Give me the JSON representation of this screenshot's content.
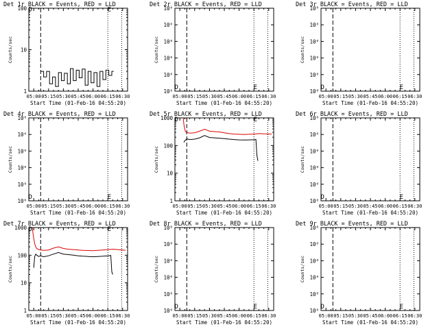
{
  "chart_data": [
    {
      "type": "line",
      "title": "Det 1r BLACK = Events, RED = LLD",
      "xlabel": "Start Time (01-Feb-16 04:55:20)",
      "ylabel": "Counts/sec",
      "yscale": "log",
      "ylim": [
        1,
        100
      ],
      "yticks": [
        {
          "v": 1,
          "label": "1"
        },
        {
          "v": 10,
          "label": "10"
        },
        {
          "v": 100,
          "label": "100"
        }
      ],
      "xlim_min": [
        295,
        395
      ],
      "x_tick_labels": [
        "05:00",
        "05:15",
        "05:30",
        "05:45",
        "06:00",
        "06:15",
        "06:30"
      ],
      "x_tick_min": [
        300,
        315,
        330,
        345,
        360,
        375,
        390
      ],
      "marker_lines_min": [
        {
          "x": 307,
          "style": "dashed"
        },
        {
          "x": 375,
          "style": "dotted"
        },
        {
          "x": 389,
          "style": "dotted"
        }
      ],
      "markers": [
        {
          "label": "D",
          "x_min": 296.5,
          "y": 95
        },
        {
          "label": "E",
          "x_min": 376.5,
          "y": 95
        }
      ],
      "series": [
        {
          "name": "Events",
          "color": "#000000",
          "step": true,
          "x_min": [
            307,
            310,
            313,
            316,
            319,
            322,
            325,
            328,
            331,
            334,
            337,
            340,
            343,
            346,
            349,
            352,
            355,
            358,
            361,
            364,
            367,
            370,
            373,
            376,
            379
          ],
          "values": [
            3,
            2.2,
            3,
            1.5,
            2.2,
            1.3,
            2.8,
            1.8,
            2.7,
            1.5,
            3.5,
            1.8,
            3.2,
            2.1,
            3.4,
            1.4,
            3.0,
            1.6,
            2.8,
            1.3,
            3.0,
            1.9,
            3.2,
            2.4,
            3.0
          ]
        }
      ]
    },
    {
      "type": "line",
      "title": "Det 2r BLACK = Events, RED = LLD",
      "xlabel": "Start Time (01-Feb-16 04:55:20)",
      "ylabel": "Counts/sec",
      "yscale": "log",
      "ylim": [
        0.9999995,
        1.0000005
      ],
      "yticks": [
        {
          "v": 1.0000005,
          "label": "10⁰"
        },
        {
          "v": 1.0000003,
          "label": "10⁰"
        },
        {
          "v": 1.0000001,
          "label": "10⁰"
        },
        {
          "v": 0.9999999,
          "label": "10⁰"
        },
        {
          "v": 0.9999997,
          "label": "10⁰"
        },
        {
          "v": 0.9999995,
          "label": "10⁰"
        }
      ],
      "xlim_min": [
        295,
        395
      ],
      "x_tick_labels": [
        "05:00",
        "05:15",
        "05:30",
        "05:45",
        "06:00",
        "06:15",
        "06:30"
      ],
      "x_tick_min": [
        300,
        315,
        330,
        345,
        360,
        375,
        390
      ],
      "marker_lines_min": [
        {
          "x": 307,
          "style": "dashed"
        },
        {
          "x": 375,
          "style": "dotted"
        },
        {
          "x": 389,
          "style": "dotted"
        }
      ],
      "markers": [
        {
          "label": "D",
          "x_min": 296.5,
          "y": 0.99999955
        },
        {
          "label": "E",
          "x_min": 376.5,
          "y": 0.99999955
        }
      ],
      "series": []
    },
    {
      "type": "line",
      "title": "Det 3r BLACK = Events, RED = LLD",
      "xlabel": "Start Time (01-Feb-16 04:55:20)",
      "ylabel": "Counts/sec",
      "yscale": "log",
      "ylim": [
        0.9999995,
        1.0000005
      ],
      "yticks": [
        {
          "v": 1.0000005,
          "label": "10⁰"
        },
        {
          "v": 1.0000003,
          "label": "10⁰"
        },
        {
          "v": 1.0000001,
          "label": "10⁰"
        },
        {
          "v": 0.9999999,
          "label": "10⁰"
        },
        {
          "v": 0.9999997,
          "label": "10⁰"
        },
        {
          "v": 0.9999995,
          "label": "10⁰"
        }
      ],
      "xlim_min": [
        295,
        395
      ],
      "x_tick_labels": [
        "05:00",
        "05:15",
        "05:30",
        "05:45",
        "06:00",
        "06:15",
        "06:30"
      ],
      "x_tick_min": [
        300,
        315,
        330,
        345,
        360,
        375,
        390
      ],
      "marker_lines_min": [
        {
          "x": 307,
          "style": "dashed"
        },
        {
          "x": 375,
          "style": "dotted"
        },
        {
          "x": 389,
          "style": "dotted"
        }
      ],
      "markers": [
        {
          "label": "D",
          "x_min": 296.5,
          "y": 0.99999955
        },
        {
          "label": "E",
          "x_min": 376.5,
          "y": 0.99999955
        }
      ],
      "series": []
    },
    {
      "type": "line",
      "title": "Det 4r BLACK = Events, RED = LLD",
      "xlabel": "Start Time (01-Feb-16 04:55:20)",
      "ylabel": "Counts/sec",
      "yscale": "log",
      "ylim": [
        0.9999995,
        1.0000005
      ],
      "yticks": [
        {
          "v": 1.0000005,
          "label": "10⁰"
        },
        {
          "v": 1.0000003,
          "label": "10⁰"
        },
        {
          "v": 1.0000001,
          "label": "10⁰"
        },
        {
          "v": 0.9999999,
          "label": "10⁰"
        },
        {
          "v": 0.9999997,
          "label": "10⁰"
        },
        {
          "v": 0.9999995,
          "label": "10⁰"
        }
      ],
      "xlim_min": [
        295,
        395
      ],
      "x_tick_labels": [
        "05:00",
        "05:15",
        "05:30",
        "05:45",
        "06:00",
        "06:15",
        "06:30"
      ],
      "x_tick_min": [
        300,
        315,
        330,
        345,
        360,
        375,
        390
      ],
      "marker_lines_min": [
        {
          "x": 307,
          "style": "dashed"
        },
        {
          "x": 375,
          "style": "dotted"
        },
        {
          "x": 389,
          "style": "dotted"
        }
      ],
      "markers": [
        {
          "label": "D",
          "x_min": 296.5,
          "y": 0.99999955
        },
        {
          "label": "E",
          "x_min": 376.5,
          "y": 0.99999955
        }
      ],
      "series": []
    },
    {
      "type": "line",
      "title": "Det 5r BLACK = Events, RED = LLD",
      "xlabel": "Start Time (01-Feb-16 04:55:20)",
      "ylabel": "Counts/sec",
      "yscale": "log",
      "ylim": [
        1,
        1000
      ],
      "yticks": [
        {
          "v": 1,
          "label": "1"
        },
        {
          "v": 10,
          "label": "10"
        },
        {
          "v": 100,
          "label": "100"
        },
        {
          "v": 1000,
          "label": "1000"
        }
      ],
      "xlim_min": [
        295,
        395
      ],
      "x_tick_labels": [
        "05:00",
        "05:15",
        "05:30",
        "05:45",
        "06:00",
        "06:15",
        "06:30"
      ],
      "x_tick_min": [
        300,
        315,
        330,
        345,
        360,
        375,
        390
      ],
      "marker_lines_min": [
        {
          "x": 307,
          "style": "dashed"
        },
        {
          "x": 375,
          "style": "dotted"
        },
        {
          "x": 389,
          "style": "dotted"
        }
      ],
      "markers": [
        {
          "label": "D",
          "x_min": 296.5,
          "y": 880
        },
        {
          "label": "E",
          "x_min": 376.5,
          "y": 880
        }
      ],
      "series": [
        {
          "name": "LLD",
          "color": "#dd0000",
          "x_min": [
            303.5,
            304,
            305,
            306,
            307,
            310,
            315,
            320,
            325,
            330,
            335,
            340,
            345,
            350,
            355,
            360,
            365,
            370,
            375,
            380,
            385,
            390,
            393
          ],
          "values": [
            1000,
            600,
            380,
            310,
            300,
            280,
            290,
            330,
            390,
            330,
            320,
            310,
            290,
            270,
            260,
            255,
            250,
            255,
            260,
            270,
            265,
            262,
            260
          ]
        },
        {
          "name": "Events",
          "color": "#000000",
          "x_min": [
            304,
            305,
            306,
            307,
            310,
            315,
            320,
            325,
            330,
            335,
            340,
            345,
            350,
            355,
            360,
            365,
            370,
            375,
            377,
            378,
            379
          ],
          "values": [
            130,
            150,
            160,
            175,
            165,
            170,
            190,
            230,
            195,
            190,
            185,
            178,
            170,
            165,
            160,
            158,
            160,
            162,
            165,
            45,
            28
          ]
        }
      ]
    },
    {
      "type": "line",
      "title": "Det 6r BLACK = Events, RED = LLD",
      "xlabel": "Start Time (01-Feb-16 04:55:20)",
      "ylabel": "Counts/sec",
      "yscale": "log",
      "ylim": [
        0.9999995,
        1.0000005
      ],
      "yticks": [
        {
          "v": 1.0000005,
          "label": "10⁰"
        },
        {
          "v": 1.0000003,
          "label": "10⁰"
        },
        {
          "v": 1.0000001,
          "label": "10⁰"
        },
        {
          "v": 0.9999999,
          "label": "10⁰"
        },
        {
          "v": 0.9999997,
          "label": "10⁰"
        },
        {
          "v": 0.9999995,
          "label": "10⁰"
        }
      ],
      "xlim_min": [
        295,
        395
      ],
      "x_tick_labels": [
        "05:00",
        "05:15",
        "05:30",
        "05:45",
        "06:00",
        "06:15",
        "06:30"
      ],
      "x_tick_min": [
        300,
        315,
        330,
        345,
        360,
        375,
        390
      ],
      "marker_lines_min": [
        {
          "x": 307,
          "style": "dashed"
        },
        {
          "x": 375,
          "style": "dotted"
        },
        {
          "x": 389,
          "style": "dotted"
        }
      ],
      "markers": [
        {
          "label": "D",
          "x_min": 296.5,
          "y": 0.99999955
        },
        {
          "label": "E",
          "x_min": 376.5,
          "y": 0.99999955
        }
      ],
      "series": []
    },
    {
      "type": "line",
      "title": "Det 7r BLACK = Events, RED = LLD",
      "xlabel": "Start Time (01-Feb-16 04:55:20)",
      "ylabel": "Counts/sec",
      "yscale": "log",
      "ylim": [
        1,
        1000
      ],
      "yticks": [
        {
          "v": 1,
          "label": "1"
        },
        {
          "v": 10,
          "label": "10"
        },
        {
          "v": 100,
          "label": "100"
        },
        {
          "v": 1000,
          "label": "1000"
        }
      ],
      "xlim_min": [
        295,
        395
      ],
      "x_tick_labels": [
        "05:00",
        "05:15",
        "05:30",
        "05:45",
        "06:00",
        "06:15",
        "06:30"
      ],
      "x_tick_min": [
        300,
        315,
        330,
        345,
        360,
        375,
        390
      ],
      "marker_lines_min": [
        {
          "x": 307,
          "style": "dashed"
        },
        {
          "x": 375,
          "style": "dotted"
        },
        {
          "x": 389,
          "style": "dotted"
        }
      ],
      "markers": [
        {
          "label": "D",
          "x_min": 296.5,
          "y": 880
        },
        {
          "label": "E",
          "x_min": 376.5,
          "y": 880
        }
      ],
      "series": [
        {
          "name": "LLD",
          "color": "#dd0000",
          "x_min": [
            298.5,
            299,
            300,
            301,
            302,
            303,
            305,
            307,
            310,
            315,
            320,
            325,
            330,
            335,
            340,
            345,
            350,
            355,
            360,
            365,
            370,
            375,
            380,
            385,
            390,
            393
          ],
          "values": [
            1000,
            700,
            400,
            260,
            200,
            175,
            160,
            155,
            150,
            155,
            180,
            200,
            175,
            165,
            160,
            155,
            150,
            148,
            145,
            150,
            155,
            160,
            165,
            160,
            155,
            150
          ]
        },
        {
          "name": "Events",
          "color": "#000000",
          "x_min": [
            300,
            301,
            302,
            303,
            304,
            305,
            307,
            310,
            315,
            320,
            325,
            330,
            335,
            340,
            345,
            350,
            355,
            360,
            365,
            370,
            375,
            378,
            379,
            380
          ],
          "values": [
            35,
            90,
            110,
            100,
            95,
            90,
            95,
            88,
            95,
            110,
            125,
            110,
            105,
            100,
            95,
            92,
            90,
            88,
            90,
            92,
            95,
            98,
            25,
            20
          ]
        }
      ]
    },
    {
      "type": "line",
      "title": "Det 8r BLACK = Events, RED = LLD",
      "xlabel": "Start Time (01-Feb-16 04:55:20)",
      "ylabel": "Counts/sec",
      "yscale": "log",
      "ylim": [
        0.9999995,
        1.0000005
      ],
      "yticks": [
        {
          "v": 1.0000005,
          "label": "10⁰"
        },
        {
          "v": 1.0000003,
          "label": "10⁰"
        },
        {
          "v": 1.0000001,
          "label": "10⁰"
        },
        {
          "v": 0.9999999,
          "label": "10⁰"
        },
        {
          "v": 0.9999997,
          "label": "10⁰"
        },
        {
          "v": 0.9999995,
          "label": "10⁰"
        }
      ],
      "xlim_min": [
        295,
        395
      ],
      "x_tick_labels": [
        "05:00",
        "05:15",
        "05:30",
        "05:45",
        "06:00",
        "06:15",
        "06:30"
      ],
      "x_tick_min": [
        300,
        315,
        330,
        345,
        360,
        375,
        390
      ],
      "marker_lines_min": [
        {
          "x": 307,
          "style": "dashed"
        },
        {
          "x": 375,
          "style": "dotted"
        },
        {
          "x": 389,
          "style": "dotted"
        }
      ],
      "markers": [
        {
          "label": "D",
          "x_min": 296.5,
          "y": 0.99999955
        },
        {
          "label": "E",
          "x_min": 376.5,
          "y": 0.99999955
        }
      ],
      "series": []
    },
    {
      "type": "line",
      "title": "Det 9r BLACK = Events, RED = LLD",
      "xlabel": "Start Time (01-Feb-16 04:55:20)",
      "ylabel": "Counts/sec",
      "yscale": "log",
      "ylim": [
        0.9999995,
        1.0000005
      ],
      "yticks": [
        {
          "v": 1.0000005,
          "label": "10⁰"
        },
        {
          "v": 1.0000003,
          "label": "10⁰"
        },
        {
          "v": 1.0000001,
          "label": "10⁰"
        },
        {
          "v": 0.9999999,
          "label": "10⁰"
        },
        {
          "v": 0.9999997,
          "label": "10⁰"
        },
        {
          "v": 0.9999995,
          "label": "10⁰"
        }
      ],
      "xlim_min": [
        295,
        395
      ],
      "x_tick_labels": [
        "05:00",
        "05:15",
        "05:30",
        "05:45",
        "06:00",
        "06:15",
        "06:30"
      ],
      "x_tick_min": [
        300,
        315,
        330,
        345,
        360,
        375,
        390
      ],
      "marker_lines_min": [
        {
          "x": 307,
          "style": "dashed"
        },
        {
          "x": 375,
          "style": "dotted"
        },
        {
          "x": 389,
          "style": "dotted"
        }
      ],
      "markers": [
        {
          "label": "D",
          "x_min": 296.5,
          "y": 0.99999955
        },
        {
          "label": "E",
          "x_min": 376.5,
          "y": 0.99999955
        }
      ],
      "series": []
    }
  ]
}
